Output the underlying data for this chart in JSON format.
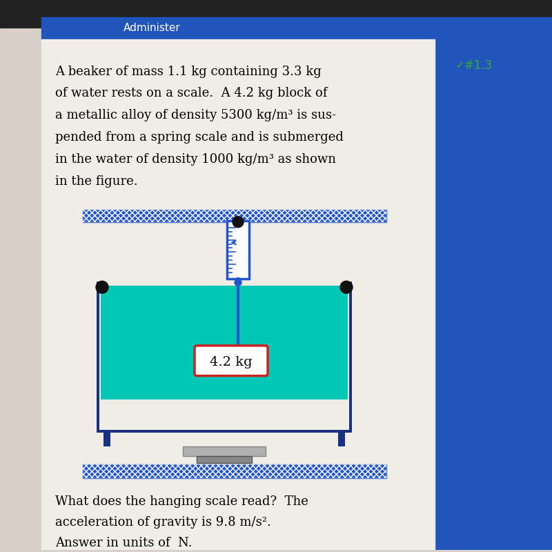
{
  "background_color": "#d8d0c8",
  "content_bg": "#f0ece6",
  "problem_text_lines": [
    "A beaker of mass 1.1 kg containing 3.3 kg",
    "of water rests on a scale.  A 4.2 kg block of",
    "a metallic alloy of density 5300 kg/m³ is sus-",
    "pended from a spring scale and is submerged",
    "in the water of density 1000 kg/m³ as shown",
    "in the figure."
  ],
  "question_text_lines": [
    "What does the hanging scale read?  The",
    "acceleration of gravity is 9.8 m/s².",
    "Answer in units of  N."
  ],
  "block_label": "4.2 kg",
  "top_bar_color": "#2255cc",
  "hatch_edge_color": "#ffffff",
  "spring_color": "#2255cc",
  "spring_bg": "#ffffff",
  "water_color": "#00c8b4",
  "beaker_color": "#1a3080",
  "scale_gray_light": "#b0b0b0",
  "scale_gray_dark": "#888888",
  "block_border_color": "#cc2222",
  "block_bg_color": "#ffffff",
  "text_color": "#000000",
  "header_bar_color": "#2255bb",
  "corner_dot_color": "#111111",
  "sidebar_bg": "#2255bb",
  "check_mark": "✓#1.3",
  "check_color": "#33aa33"
}
